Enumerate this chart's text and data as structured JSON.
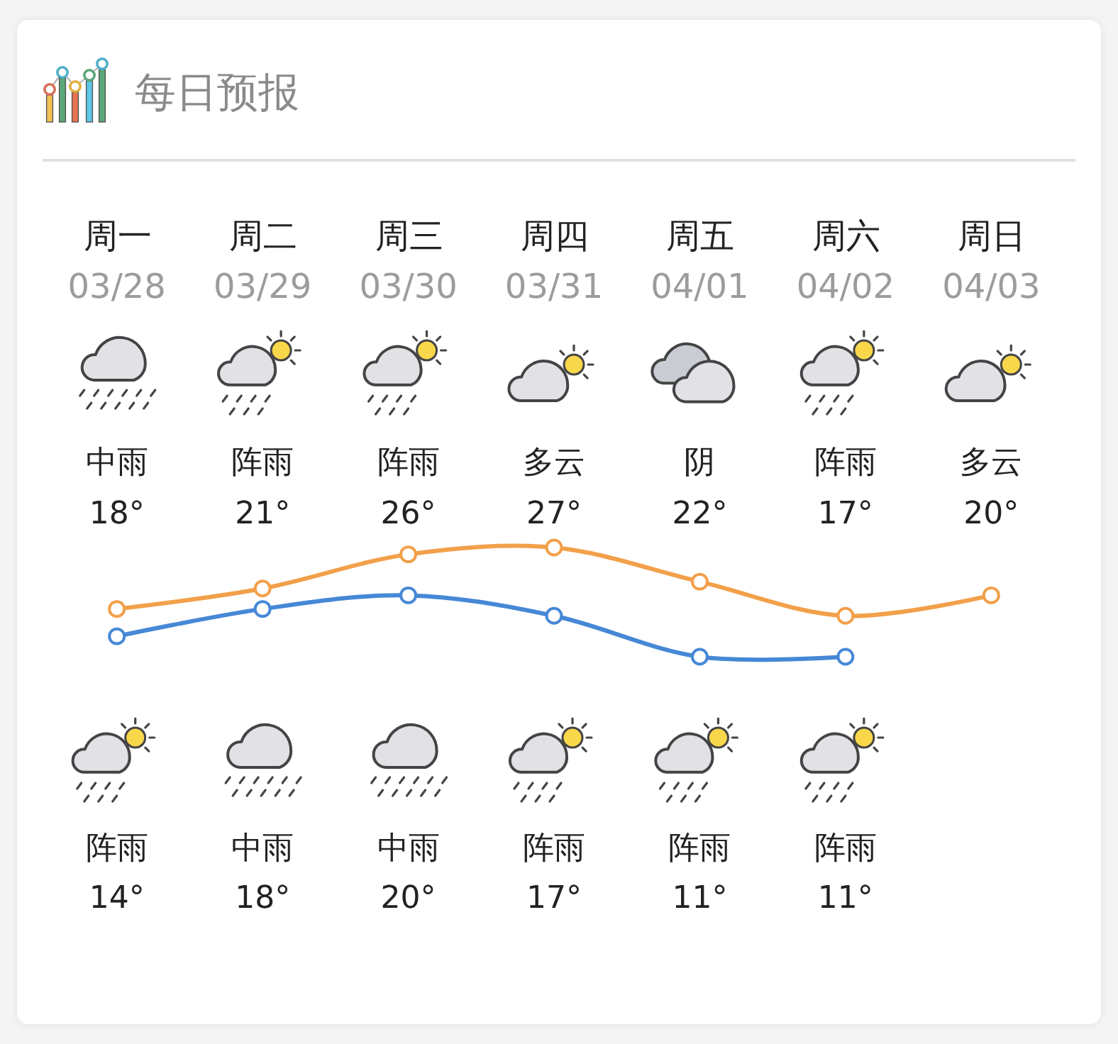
{
  "chart_data": {
    "type": "line",
    "title": "每日预报",
    "categories": [
      "周一\n03/28",
      "周二\n03/29",
      "周三\n03/30",
      "周四\n03/31",
      "周五\n04/01",
      "周六\n04/02",
      "周日\n04/03"
    ],
    "series": [
      {
        "color": "#f2a04a",
        "values": [
          18,
          21,
          26,
          27,
          22,
          17,
          20
        ],
        "value_labels": [
          "18°",
          "21°",
          "26°",
          "27°",
          "22°",
          "17°",
          "20°"
        ]
      },
      {
        "color": "#4688d6",
        "values": [
          14,
          18,
          20,
          17,
          11,
          11,
          null
        ],
        "value_labels": [
          "14°",
          "18°",
          "20°",
          "17°",
          "11°",
          "11°",
          null
        ]
      }
    ],
    "marker": "circle",
    "tick_labels": "x",
    "annotations": [
      "中雨",
      "阵雨",
      "阵雨",
      "多云",
      "阴",
      "阵雨",
      "多云",
      "阵雨",
      "中雨",
      "中雨",
      "阵雨",
      "阵雨",
      "阵雨"
    ]
  }
}
